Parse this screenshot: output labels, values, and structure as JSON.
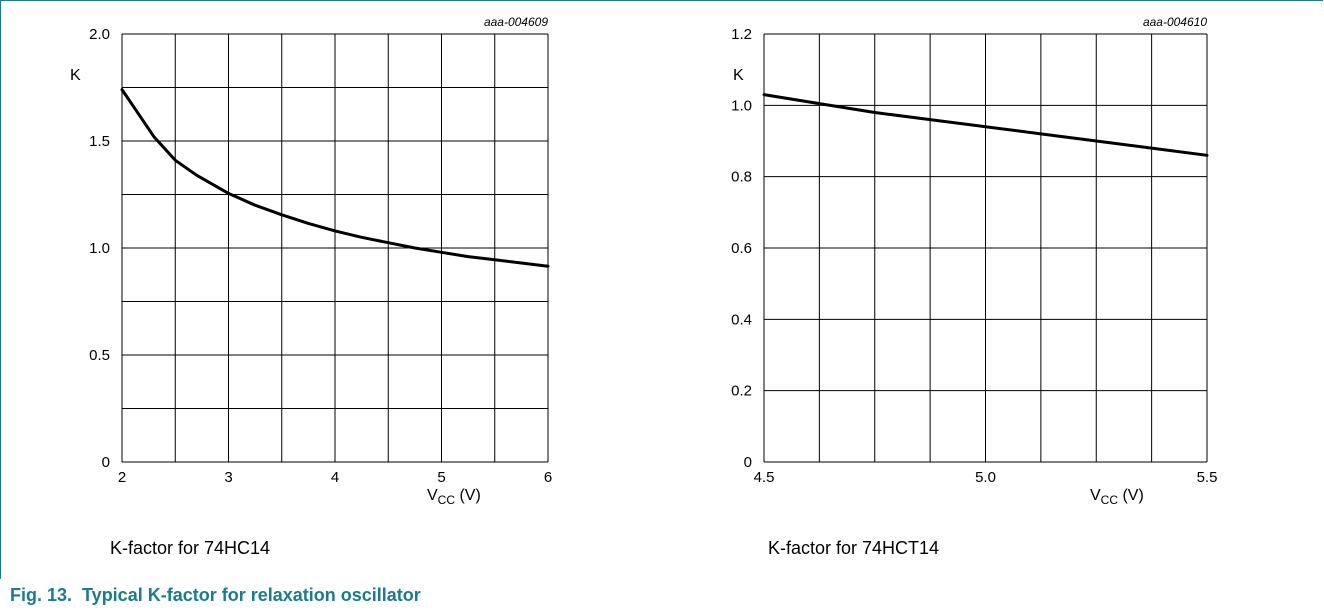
{
  "figure_caption": "Fig. 13.  Typical K-factor for relaxation oscillator",
  "chart_data": [
    {
      "type": "line",
      "code": "aaa-004609",
      "subtitle": "K-factor for 74HC14",
      "ylabel": "K",
      "xlabel_main": "V",
      "xlabel_sub": "CC",
      "xlabel_unit": " (V)",
      "xlim": [
        2,
        6
      ],
      "ylim": [
        0,
        2.0
      ],
      "x_grid_step": 0.5,
      "y_grid_step": 0.25,
      "x_ticks": [
        2,
        3,
        4,
        5,
        6
      ],
      "x_tick_labels": [
        "2",
        "3",
        "4",
        "5",
        "6"
      ],
      "y_ticks": [
        0,
        0.5,
        1.0,
        1.5,
        2.0
      ],
      "y_tick_labels": [
        "0",
        "0.5",
        "1.0",
        "1.5",
        "2.0"
      ],
      "grid": true,
      "series": [
        {
          "x": [
            2.0,
            2.15,
            2.3,
            2.5,
            2.7,
            3.0,
            3.25,
            3.5,
            3.75,
            4.0,
            4.25,
            4.5,
            4.75,
            5.0,
            5.25,
            5.5,
            5.75,
            6.0
          ],
          "y": [
            1.74,
            1.63,
            1.52,
            1.41,
            1.34,
            1.255,
            1.2,
            1.155,
            1.115,
            1.08,
            1.05,
            1.025,
            1.0,
            0.98,
            0.96,
            0.945,
            0.93,
            0.915
          ]
        }
      ]
    },
    {
      "type": "line",
      "code": "aaa-004610",
      "subtitle": "K-factor for 74HCT14",
      "ylabel": "K",
      "xlabel_main": "V",
      "xlabel_sub": "CC",
      "xlabel_unit": " (V)",
      "xlim": [
        4.5,
        5.5
      ],
      "ylim": [
        0,
        1.2
      ],
      "x_grid_step": 0.125,
      "y_grid_step": 0.2,
      "x_ticks": [
        4.5,
        5.0,
        5.5
      ],
      "x_tick_labels": [
        "4.5",
        "5.0",
        "5.5"
      ],
      "y_ticks": [
        0,
        0.2,
        0.4,
        0.6,
        0.8,
        1.0,
        1.2
      ],
      "y_tick_labels": [
        "0",
        "0.2",
        "0.4",
        "0.6",
        "0.8",
        "1.0",
        "1.2"
      ],
      "grid": true,
      "series": [
        {
          "x": [
            4.5,
            4.625,
            4.75,
            4.875,
            5.0,
            5.125,
            5.25,
            5.375,
            5.5
          ],
          "y": [
            1.03,
            1.005,
            0.98,
            0.96,
            0.94,
            0.92,
            0.9,
            0.88,
            0.86
          ]
        }
      ]
    }
  ]
}
